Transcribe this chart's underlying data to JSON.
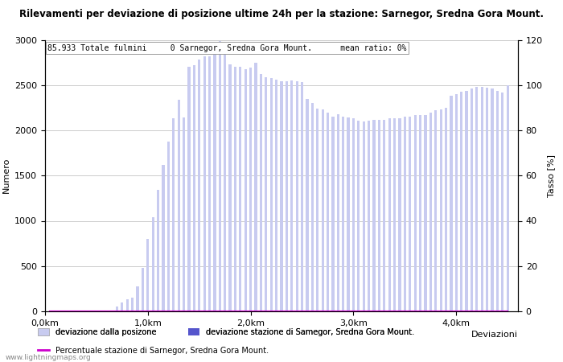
{
  "title": "Rilevamenti per deviazione di posizione ultime 24h per la stazione: Sarnegor, Sredna Gora Mount.",
  "ylabel_left": "Numero",
  "ylabel_right": "Tasso [%]",
  "xlabel_right": "Deviazioni",
  "annotation": "85.933 Totale fulmini     0 Sarnegor, Sredna Gora Mount.      mean ratio: 0%",
  "watermark": "www.lightningmaps.org",
  "legend_label1": "deviazione dalla posizone",
  "legend_label2": "deviazione stazione di Samegor, Sredna Gora Mount.",
  "legend_label3": "Percentuale stazione di Sarnegor, Sredna Gora Mount.",
  "bar_light_color": "#c8cbf0",
  "bar_dark_color": "#5555cc",
  "line_color": "#cc00cc",
  "bar_positions": [
    0.05,
    0.1,
    0.15,
    0.2,
    0.25,
    0.3,
    0.35,
    0.4,
    0.45,
    0.5,
    0.55,
    0.6,
    0.65,
    0.7,
    0.75,
    0.8,
    0.85,
    0.9,
    0.95,
    1.0,
    1.05,
    1.1,
    1.15,
    1.2,
    1.25,
    1.3,
    1.35,
    1.4,
    1.45,
    1.5,
    1.55,
    1.6,
    1.65,
    1.7,
    1.75,
    1.8,
    1.85,
    1.9,
    1.95,
    2.0,
    2.05,
    2.1,
    2.15,
    2.2,
    2.25,
    2.3,
    2.35,
    2.4,
    2.45,
    2.5,
    2.55,
    2.6,
    2.65,
    2.7,
    2.75,
    2.8,
    2.85,
    2.9,
    2.95,
    3.0,
    3.05,
    3.1,
    3.15,
    3.2,
    3.25,
    3.3,
    3.35,
    3.4,
    3.45,
    3.5,
    3.55,
    3.6,
    3.65,
    3.7,
    3.75,
    3.8,
    3.85,
    3.9,
    3.95,
    4.0,
    4.05,
    4.1,
    4.15,
    4.2,
    4.25,
    4.3,
    4.35,
    4.4,
    4.45,
    4.5
  ],
  "bar_heights_light": [
    5,
    5,
    5,
    5,
    5,
    5,
    5,
    5,
    5,
    5,
    5,
    5,
    10,
    50,
    100,
    130,
    150,
    280,
    480,
    800,
    1040,
    1340,
    1620,
    1880,
    2130,
    2340,
    2140,
    2700,
    2720,
    2780,
    2820,
    2820,
    2970,
    2990,
    2970,
    2730,
    2700,
    2700,
    2680,
    2690,
    2750,
    2620,
    2590,
    2580,
    2560,
    2540,
    2540,
    2550,
    2540,
    2530,
    2350,
    2300,
    2240,
    2230,
    2200,
    2150,
    2180,
    2150,
    2140,
    2130,
    2110,
    2100,
    2110,
    2120,
    2120,
    2120,
    2130,
    2130,
    2130,
    2150,
    2150,
    2170,
    2170,
    2170,
    2200,
    2220,
    2230,
    2250,
    2380,
    2400,
    2430,
    2440,
    2460,
    2480,
    2480,
    2470,
    2460,
    2440,
    2420,
    2500
  ],
  "bar_heights_dark": [
    0,
    0,
    0,
    0,
    0,
    0,
    0,
    0,
    0,
    0,
    0,
    0,
    0,
    0,
    0,
    0,
    0,
    0,
    0,
    0,
    0,
    0,
    0,
    0,
    0,
    0,
    0,
    0,
    0,
    0,
    0,
    0,
    0,
    0,
    0,
    0,
    0,
    0,
    0,
    0,
    0,
    0,
    0,
    0,
    0,
    0,
    0,
    0,
    0,
    0,
    0,
    0,
    0,
    0,
    0,
    0,
    0,
    0,
    0,
    0,
    0,
    0,
    0,
    0,
    0,
    0,
    0,
    0,
    0,
    0,
    0,
    0,
    0,
    0,
    0,
    0,
    0,
    0,
    0,
    0,
    0,
    0,
    0,
    0,
    0,
    0,
    0,
    0,
    0,
    0
  ],
  "ylim_left": [
    0,
    3000
  ],
  "ylim_right": [
    0,
    120
  ],
  "xlim": [
    0.0,
    4.6
  ],
  "xticks": [
    0.0,
    1.0,
    2.0,
    3.0,
    4.0
  ],
  "xtick_labels": [
    "0,0km",
    "1,0km",
    "2,0km",
    "3,0km",
    "4,0km"
  ],
  "yticks_left": [
    0,
    500,
    1000,
    1500,
    2000,
    2500,
    3000
  ],
  "yticks_right": [
    0,
    20,
    40,
    60,
    80,
    100,
    120
  ],
  "grid_color": "#cccccc",
  "background_color": "#ffffff",
  "bar_width": 0.025,
  "title_fontsize": 8.5,
  "axis_fontsize": 8,
  "annot_fontsize": 7,
  "legend_fontsize": 7
}
